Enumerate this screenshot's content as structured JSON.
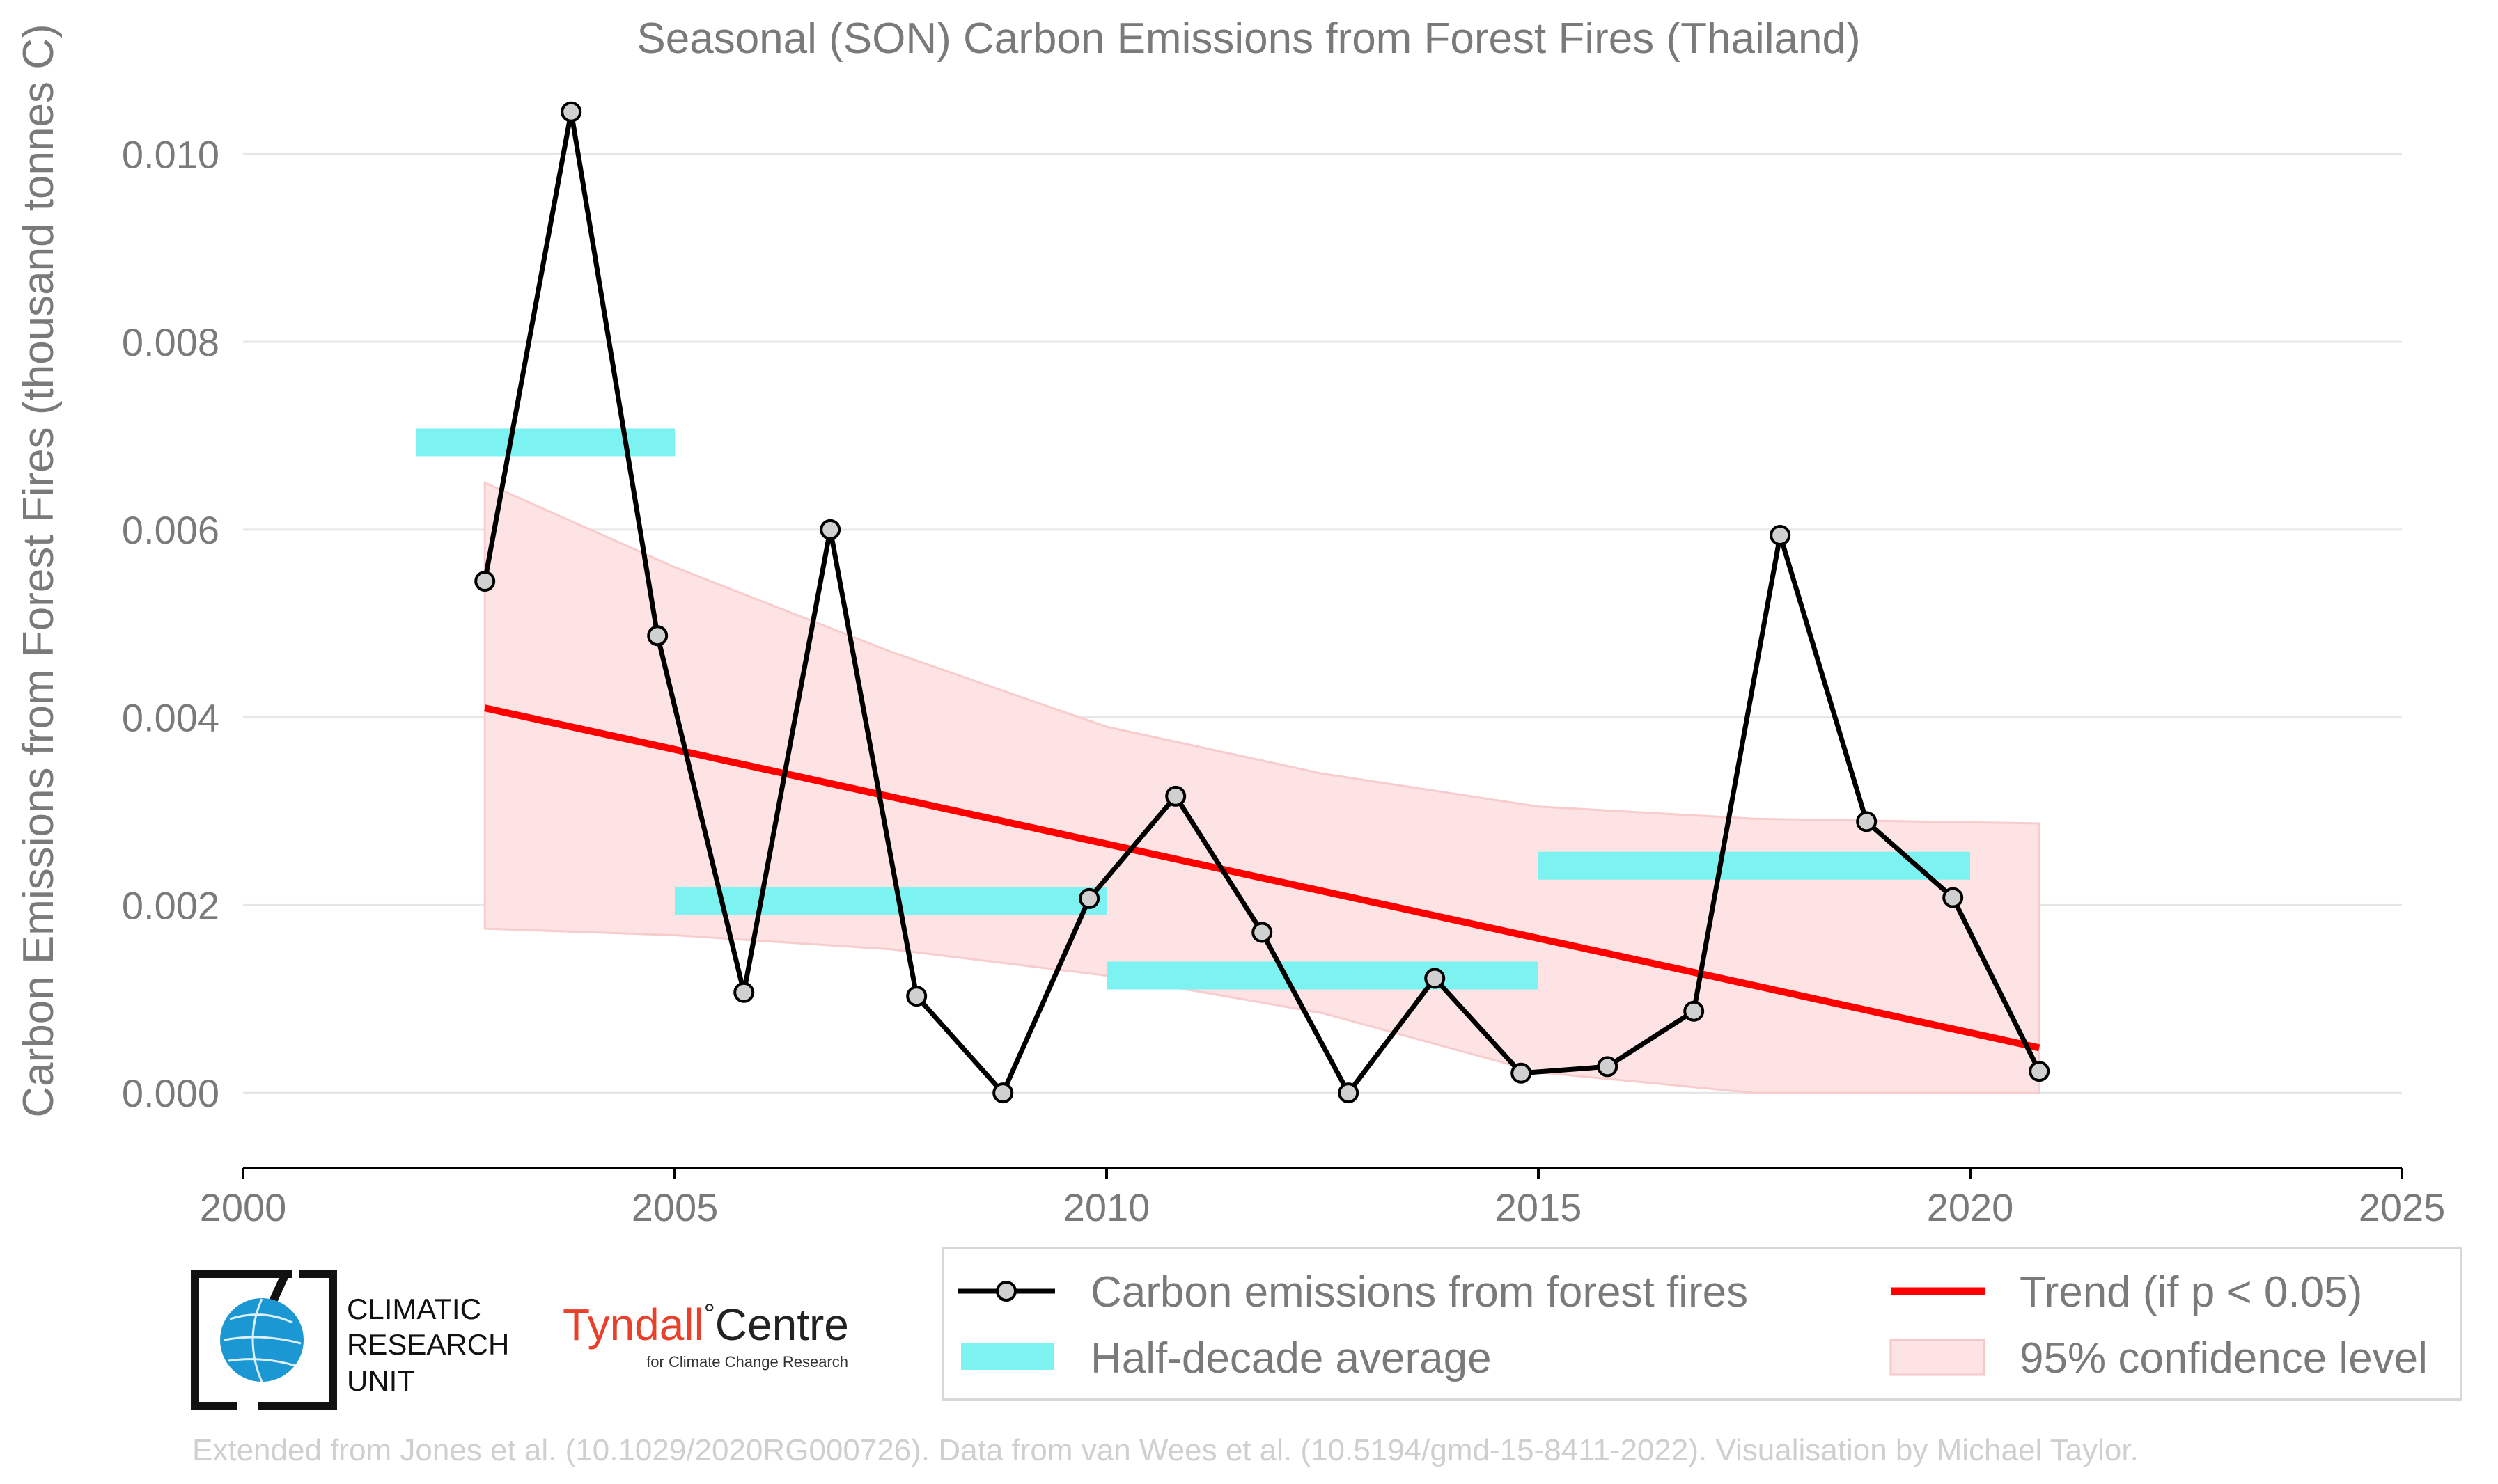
{
  "chart_data": {
    "type": "line",
    "title": "Seasonal (SON) Carbon Emissions from Forest Fires (Thailand)",
    "xlabel": "",
    "ylabel": "Carbon Emissions from Forest Fires (thousand tonnes C)",
    "xlim": [
      2000,
      2025
    ],
    "ylim": [
      -0.0008,
      0.0109
    ],
    "x_ticks": [
      2000,
      2005,
      2010,
      2015,
      2020,
      2025
    ],
    "y_ticks": [
      0.0,
      0.002,
      0.004,
      0.006,
      0.008,
      0.01
    ],
    "y_tick_labels": [
      "0.000",
      "0.002",
      "0.004",
      "0.006",
      "0.008",
      "0.010"
    ],
    "grid": "horizontal",
    "legend_placement": "bottom-right",
    "series": [
      {
        "name": "Carbon emissions from forest fires",
        "type": "line",
        "color": "#000000",
        "marker_color": "#d0d0d0",
        "x": [
          2002.8,
          2003.8,
          2004.8,
          2005.8,
          2006.8,
          2007.8,
          2008.8,
          2009.8,
          2010.8,
          2011.8,
          2012.8,
          2013.8,
          2014.8,
          2015.8,
          2016.8,
          2017.8,
          2018.8,
          2019.8,
          2020.8
        ],
        "y": [
          0.00545,
          0.01045,
          0.00487,
          0.00107,
          0.006,
          0.00103,
          0.0,
          0.00207,
          0.00316,
          0.00171,
          0.0,
          0.00122,
          0.00021,
          0.00028,
          0.00087,
          0.00594,
          0.00289,
          0.00208,
          0.00023
        ]
      },
      {
        "name": "Half-decade average",
        "type": "segments",
        "color": "#7df3f1",
        "segments": [
          {
            "x0": 2002,
            "x1": 2005,
            "y": 0.00693
          },
          {
            "x0": 2005,
            "x1": 2010,
            "y": 0.00204
          },
          {
            "x0": 2010,
            "x1": 2015,
            "y": 0.00125
          },
          {
            "x0": 2015,
            "x1": 2020,
            "y": 0.00242
          }
        ]
      },
      {
        "name": "Trend (if p < 0.05)",
        "type": "line",
        "color": "#ff0000",
        "x": [
          2002.8,
          2020.8
        ],
        "y": [
          0.0041,
          0.00048
        ]
      },
      {
        "name": "95% confidence level",
        "type": "band",
        "color": "#fde3e3",
        "x": [
          2002.8,
          2005.0,
          2007.5,
          2010.0,
          2012.5,
          2015.0,
          2017.5,
          2020.8
        ],
        "upper": [
          0.0065,
          0.0056,
          0.0047,
          0.0039,
          0.0034,
          0.00305,
          0.00292,
          0.00287
        ],
        "lower": [
          0.00175,
          0.00168,
          0.00153,
          0.00125,
          0.00085,
          0.00022,
          0.0,
          0.0
        ]
      }
    ]
  },
  "logos": {
    "cru_lines": [
      "CLIMATIC",
      "RESEARCH",
      "UNIT"
    ],
    "tyndall_name": "Tyndall",
    "tyndall_degree": "°",
    "tyndall_centre": "Centre",
    "tyndall_sub": "for Climate Change Research",
    "tyndall_color": "#e8402a"
  },
  "footer": "Extended from Jones et al. (10.1029/2020RG000726). Data from van Wees et al. (10.5194/gmd-15-8411-2022). Visualisation by Michael Taylor."
}
